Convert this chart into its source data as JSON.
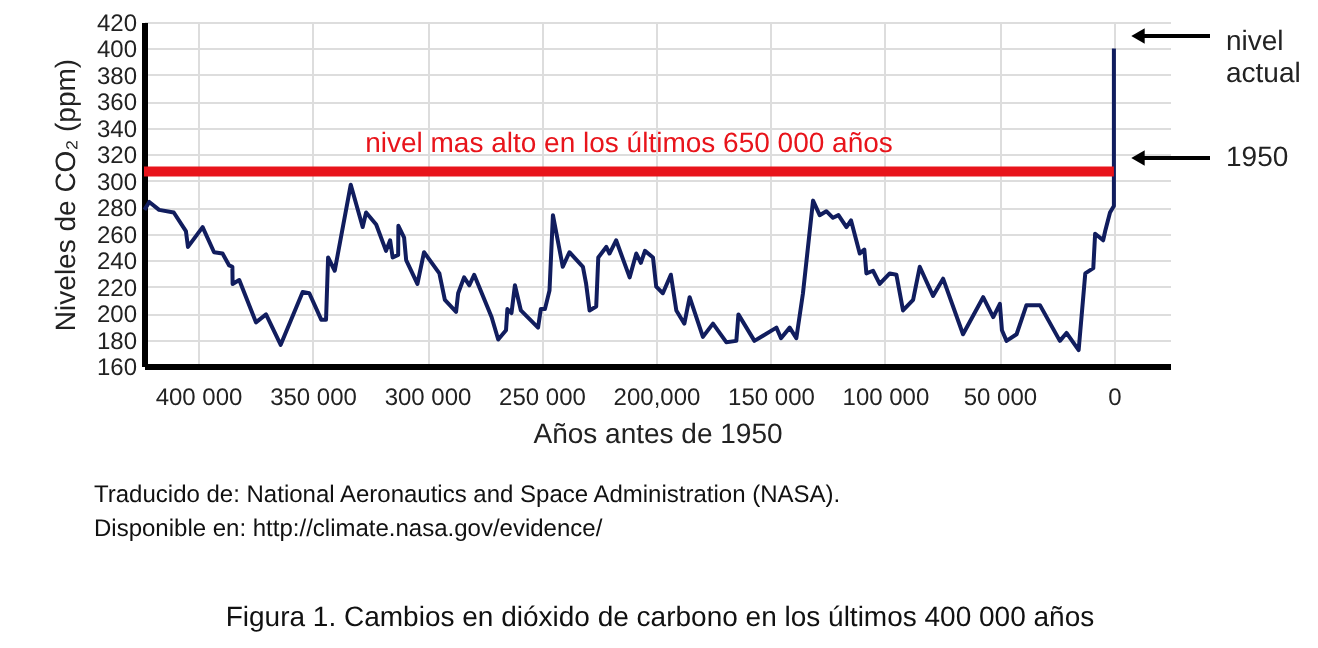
{
  "chart_data": {
    "type": "line",
    "xlabel": "Años antes de 1950",
    "ylabel": "Niveles de CO₂ (ppm)",
    "xlim": [
      423600,
      -24500
    ],
    "ylim": [
      160,
      420
    ],
    "xticks": [
      {
        "value": 400000,
        "label": "400 000"
      },
      {
        "value": 350000,
        "label": "350 000"
      },
      {
        "value": 300000,
        "label": "300 000"
      },
      {
        "value": 250000,
        "label": "250 000"
      },
      {
        "value": 200000,
        "label": "200,000"
      },
      {
        "value": 150000,
        "label": "150 000"
      },
      {
        "value": 100000,
        "label": "100 000"
      },
      {
        "value": 50000,
        "label": "50 000"
      },
      0
    ],
    "yticks": [
      160,
      180,
      200,
      220,
      240,
      260,
      280,
      300,
      320,
      340,
      360,
      380,
      400,
      420
    ],
    "grid": true,
    "series": [
      {
        "color": "#111d5e",
        "x": [
          423400,
          421300,
          417000,
          410600,
          405300,
          404400,
          398000,
          393000,
          389300,
          386400,
          385000,
          384900,
          382000,
          374700,
          370300,
          363900,
          354300,
          351400,
          346200,
          344100,
          343200,
          340300,
          333300,
          328100,
          326600,
          322200,
          317900,
          316100,
          315000,
          312600,
          312500,
          310000,
          309100,
          304200,
          301300,
          294600,
          292200,
          287300,
          286400,
          283800,
          281500,
          279400,
          271800,
          268900,
          265500,
          264900,
          263100,
          261600,
          259000,
          251500,
          250300,
          248500,
          246500,
          245000,
          240700,
          237800,
          231900,
          230500,
          229000,
          226100,
          225200,
          221700,
          220300,
          217400,
          211500,
          208600,
          206600,
          204800,
          201300,
          199900,
          197000,
          193500,
          191100,
          187600,
          185300,
          179500,
          175100,
          169300,
          164900,
          164000,
          157000,
          147400,
          145400,
          141600,
          138700,
          135800,
          131400,
          128500,
          125600,
          122700,
          120300,
          116800,
          114800,
          111000,
          109000,
          108100,
          105200,
          102300,
          97900,
          95000,
          92100,
          87700,
          84800,
          79000,
          74600,
          65900,
          57100,
          52700,
          49800,
          48900,
          46900,
          42500,
          38200,
          32300,
          23600,
          20700,
          15400,
          12500,
          9000,
          8200,
          4700,
          3800,
          1700,
          0,
          0
        ],
        "values": [
          278,
          284,
          278,
          276,
          262,
          250,
          265,
          246,
          245,
          236,
          235,
          222,
          225,
          193,
          199,
          176,
          216,
          215,
          195,
          195,
          242,
          232,
          297,
          265,
          276,
          267,
          247,
          255,
          242,
          244,
          266,
          257,
          240,
          222,
          246,
          230,
          210,
          201,
          215,
          227,
          221,
          229,
          197,
          180,
          187,
          203,
          200,
          221,
          202,
          189,
          203,
          203,
          217,
          274,
          235,
          246,
          235,
          222,
          202,
          205,
          242,
          250,
          245,
          255,
          227,
          245,
          238,
          247,
          242,
          220,
          215,
          229,
          202,
          192,
          212,
          182,
          192,
          178,
          179,
          199,
          179,
          189,
          181,
          189,
          181,
          215,
          285,
          274,
          277,
          272,
          274,
          265,
          270,
          245,
          248,
          230,
          232,
          222,
          230,
          229,
          202,
          210,
          235,
          213,
          226,
          184,
          212,
          197,
          207,
          187,
          179,
          184,
          206,
          206,
          179,
          185,
          172,
          230,
          234,
          260,
          255,
          262,
          276,
          281,
          400
        ]
      },
      {
        "name": "nivel mas alto en los últimos 650 000 años",
        "color": "#e8141b",
        "x": [
          423600,
          0
        ],
        "values": [
          307,
          307
        ]
      }
    ],
    "annotations": [
      "nivel actual",
      "1950",
      "Traducido de: National Aeronautics and Space Administration (NASA).",
      "Disponible en: http://climate.nasa.gov/evidence/",
      "Figura 1. Cambios en dióxido de carbono en los últimos 400 000 años"
    ]
  }
}
